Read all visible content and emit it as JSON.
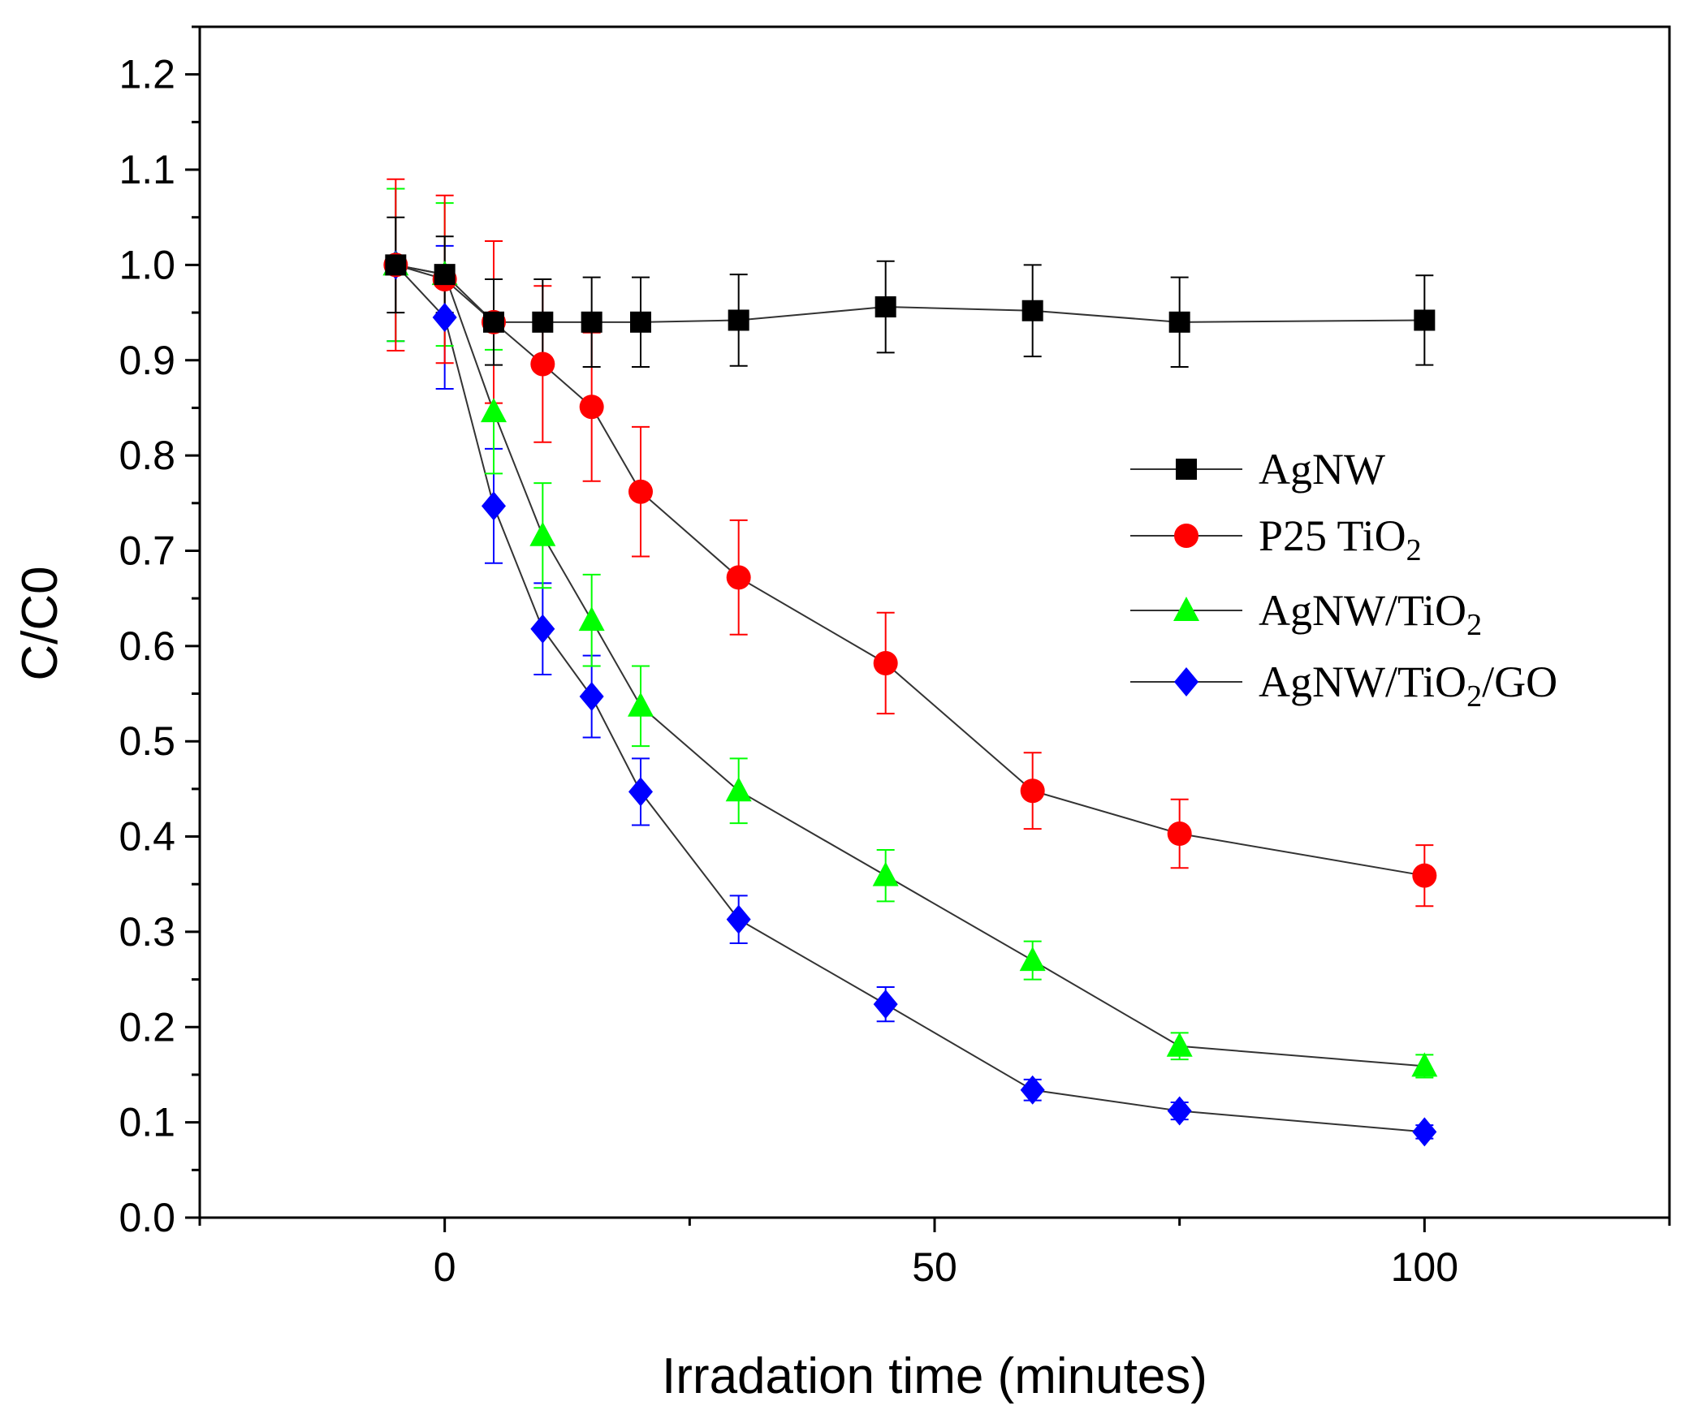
{
  "chart_data": {
    "type": "line",
    "title": "",
    "xlabel": "Irradation time (minutes)",
    "ylabel": "C/C0",
    "xlim": [
      -25,
      125
    ],
    "ylim": [
      0.0,
      1.25
    ],
    "xticks": [
      0,
      50,
      100
    ],
    "xtick_labels": [
      "0",
      "50",
      "100"
    ],
    "yticks": [
      0.0,
      0.1,
      0.2,
      0.3,
      0.4,
      0.5,
      0.6,
      0.7,
      0.8,
      0.9,
      1.0,
      1.1,
      1.2
    ],
    "ytick_labels": [
      "0.0",
      "0.1",
      "0.2",
      "0.3",
      "0.4",
      "0.5",
      "0.6",
      "0.7",
      "0.8",
      "0.9",
      "1.0",
      "1.1",
      "1.2"
    ],
    "grid": false,
    "legend_position": "right",
    "series": [
      {
        "name": "AgNW",
        "legend_label": "AgNW",
        "legend_sub": "",
        "legend_tail": "",
        "marker": "square",
        "color": "#000000",
        "x": [
          -5,
          0,
          5,
          10,
          15,
          20,
          30,
          45,
          60,
          75,
          100
        ],
        "y": [
          1.0,
          0.99,
          0.94,
          0.94,
          0.94,
          0.94,
          0.942,
          0.956,
          0.952,
          0.94,
          0.942
        ],
        "err": [
          0.05,
          0.04,
          0.045,
          0.045,
          0.047,
          0.047,
          0.048,
          0.048,
          0.048,
          0.047,
          0.047
        ]
      },
      {
        "name": "P25 TiO2",
        "legend_label": "P25 TiO",
        "legend_sub": "2",
        "legend_tail": "",
        "marker": "circle",
        "color": "#ff0000",
        "x": [
          -5,
          0,
          5,
          10,
          15,
          20,
          30,
          45,
          60,
          75,
          100
        ],
        "y": [
          1.0,
          0.985,
          0.94,
          0.896,
          0.851,
          0.762,
          0.672,
          0.582,
          0.448,
          0.403,
          0.359
        ],
        "err": [
          0.09,
          0.088,
          0.085,
          0.082,
          0.078,
          0.068,
          0.06,
          0.053,
          0.04,
          0.036,
          0.032
        ]
      },
      {
        "name": "AgNW/TiO2",
        "legend_label": "AgNW/TiO",
        "legend_sub": "2",
        "legend_tail": "",
        "marker": "triangle",
        "color": "#00ff00",
        "x": [
          -5,
          0,
          5,
          10,
          15,
          20,
          30,
          45,
          60,
          75,
          100
        ],
        "y": [
          1.0,
          0.99,
          0.846,
          0.716,
          0.627,
          0.537,
          0.448,
          0.359,
          0.27,
          0.18,
          0.159
        ],
        "err": [
          0.08,
          0.075,
          0.065,
          0.055,
          0.048,
          0.042,
          0.034,
          0.027,
          0.02,
          0.014,
          0.012
        ]
      },
      {
        "name": "AgNW/TiO2/GO",
        "legend_label": "AgNW/TiO",
        "legend_sub": "2",
        "legend_tail": "/GO",
        "marker": "diamond",
        "color": "#0000ff",
        "x": [
          -5,
          0,
          5,
          10,
          15,
          20,
          30,
          45,
          60,
          75,
          100
        ],
        "y": [
          1.0,
          0.945,
          0.747,
          0.618,
          0.547,
          0.447,
          0.313,
          0.224,
          0.134,
          0.112,
          0.09
        ],
        "err": [
          0.08,
          0.075,
          0.06,
          0.048,
          0.043,
          0.035,
          0.025,
          0.018,
          0.011,
          0.009,
          0.007
        ]
      }
    ]
  }
}
